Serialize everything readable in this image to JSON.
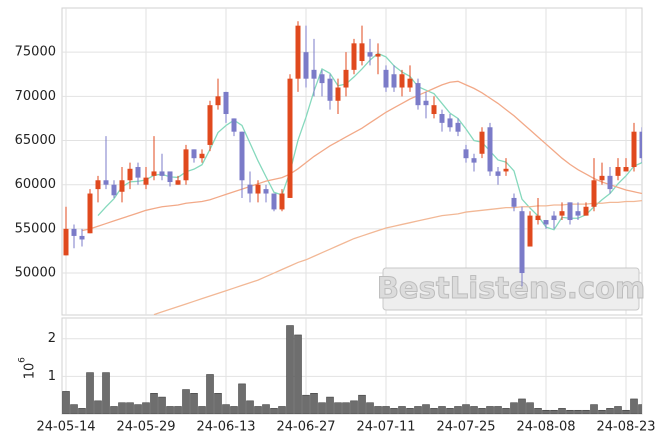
{
  "chart_data": [
    {
      "type": "candlestick",
      "open": [
        52000,
        55000,
        54200,
        54500,
        59500,
        60500,
        60000,
        59200,
        60500,
        62000,
        60000,
        61000,
        61500,
        61500,
        60000,
        60500,
        64000,
        63000,
        64500,
        69000,
        70500,
        67500,
        66000,
        60000,
        59000,
        59500,
        59000,
        57200,
        58500,
        72000,
        75000,
        73000,
        72500,
        72000,
        69500,
        71000,
        73000,
        74000,
        75000,
        74500,
        73000,
        72500,
        71000,
        71000,
        71500,
        69500,
        68000,
        68000,
        67500,
        67000,
        64000,
        63000,
        63500,
        66500,
        61500,
        61500,
        58500,
        57000,
        53000,
        56000,
        56000,
        56500,
        56500,
        58000,
        57000,
        56500,
        57500,
        60500,
        61000,
        61000,
        61500,
        62000,
        66000
      ],
      "high": [
        57500,
        55500,
        55000,
        59500,
        61000,
        65500,
        60500,
        62000,
        62500,
        62500,
        62000,
        65500,
        63500,
        61500,
        61000,
        64500,
        64000,
        64000,
        69500,
        72000,
        70500,
        67500,
        66000,
        61500,
        60500,
        60000,
        59000,
        59500,
        72500,
        78500,
        78000,
        76500,
        73000,
        72500,
        72000,
        75000,
        76500,
        78000,
        76500,
        76000,
        73500,
        73500,
        73000,
        73500,
        72000,
        70500,
        70000,
        68500,
        68000,
        67500,
        64500,
        63500,
        66500,
        67000,
        62000,
        63000,
        59000,
        57500,
        57000,
        58500,
        56000,
        57000,
        58000,
        58000,
        58000,
        58000,
        63000,
        62500,
        62000,
        63000,
        63000,
        67000,
        66500
      ],
      "low": [
        52000,
        52800,
        53000,
        54500,
        58000,
        59500,
        58500,
        58000,
        59500,
        60000,
        59500,
        60500,
        60500,
        59800,
        60000,
        60000,
        62500,
        62500,
        63800,
        68500,
        67000,
        65500,
        58500,
        58000,
        58000,
        58000,
        57000,
        57000,
        58500,
        70500,
        71000,
        70000,
        70000,
        68500,
        68000,
        70000,
        72500,
        73500,
        73500,
        72500,
        70500,
        70500,
        70000,
        70500,
        68500,
        67500,
        67500,
        66000,
        66000,
        65500,
        62500,
        61500,
        63000,
        61000,
        60000,
        61000,
        57000,
        48500,
        53000,
        55500,
        55000,
        55000,
        56000,
        55500,
        56000,
        56500,
        57000,
        60000,
        59000,
        60500,
        61500,
        61500,
        62500
      ],
      "close": [
        55000,
        54200,
        53800,
        59000,
        60500,
        60000,
        58800,
        60500,
        61800,
        60800,
        60800,
        61500,
        61000,
        60300,
        60500,
        64000,
        63000,
        63500,
        69000,
        70000,
        68000,
        66000,
        60500,
        59000,
        60000,
        59000,
        57200,
        59000,
        72000,
        78000,
        72000,
        72000,
        71500,
        69500,
        71000,
        73000,
        76000,
        76000,
        74500,
        74800,
        71000,
        71000,
        72500,
        72000,
        69000,
        69000,
        69000,
        67000,
        66500,
        66000,
        63000,
        62500,
        66000,
        61500,
        61000,
        61800,
        57500,
        50000,
        56500,
        56500,
        55500,
        56000,
        57000,
        56000,
        56500,
        57500,
        60500,
        61000,
        59500,
        62000,
        62000,
        66000,
        63000
      ],
      "up_color": "#e0491e",
      "down_color": "#7b7bc8",
      "series": [
        {
          "color": "#86d9bd",
          "values": [
            null,
            null,
            null,
            null,
            56500,
            57500,
            58420,
            59760,
            60320,
            60380,
            60540,
            61080,
            61180,
            60880,
            60820,
            61460,
            61760,
            62260,
            64000,
            65900,
            66700,
            67300,
            66700,
            64700,
            62700,
            60900,
            59140,
            58840,
            61440,
            65040,
            67640,
            70600,
            73100,
            72600,
            71200,
            71400,
            72200,
            73100,
            74100,
            74860,
            74460,
            73460,
            72760,
            72260,
            71100,
            70700,
            70300,
            69200,
            68100,
            67500,
            66300,
            65000,
            64800,
            63800,
            62800,
            62560,
            61560,
            58360,
            57360,
            56460,
            55200,
            54900,
            56300,
            56200,
            56200,
            56600,
            57500,
            58300,
            59000,
            60100,
            61000,
            62100,
            62500
          ]
        },
        {
          "color": "#f2a988",
          "values": [
            null,
            null,
            54800,
            55000,
            55300,
            55600,
            55900,
            56200,
            56500,
            56800,
            57100,
            57300,
            57500,
            57600,
            57700,
            57900,
            58000,
            58100,
            58300,
            58600,
            58900,
            59200,
            59500,
            59800,
            60100,
            60400,
            60600,
            60800,
            61200,
            61800,
            62500,
            63200,
            63800,
            64400,
            64900,
            65400,
            65900,
            66400,
            67000,
            67600,
            68200,
            68700,
            69200,
            69700,
            70100,
            70500,
            70900,
            71300,
            71600,
            71700,
            71300,
            70900,
            70400,
            69800,
            69200,
            68500,
            67800,
            67000,
            66200,
            65400,
            64600,
            63800,
            63000,
            62300,
            61700,
            61200,
            60700,
            60300,
            60000,
            59700,
            59400,
            59200,
            59000
          ]
        },
        {
          "color": "#f2b896",
          "values": [
            null,
            null,
            null,
            null,
            null,
            null,
            null,
            null,
            null,
            null,
            null,
            45300,
            45600,
            45900,
            46200,
            46500,
            46800,
            47100,
            47400,
            47700,
            48000,
            48300,
            48600,
            48900,
            49200,
            49600,
            50000,
            50400,
            50800,
            51200,
            51500,
            51900,
            52300,
            52700,
            53100,
            53500,
            53900,
            54200,
            54500,
            54800,
            55100,
            55300,
            55500,
            55700,
            55900,
            56100,
            56300,
            56500,
            56600,
            56700,
            56900,
            57000,
            57100,
            57200,
            57300,
            57400,
            57400,
            57500,
            57500,
            57600,
            57600,
            57700,
            57700,
            57800,
            57800,
            57800,
            57900,
            57900,
            58000,
            58000,
            58100,
            58100,
            58200
          ]
        }
      ],
      "ylim": [
        45250,
        80000
      ],
      "yticks": [
        50000,
        55000,
        60000,
        65000,
        70000,
        75000
      ],
      "grid": true,
      "annotation": "BestListens.com"
    },
    {
      "type": "bar",
      "categories": [
        "24-05-14",
        null,
        null,
        null,
        null,
        null,
        null,
        null,
        null,
        null,
        "24-05-29",
        null,
        null,
        null,
        null,
        null,
        null,
        null,
        null,
        null,
        "24-06-13",
        null,
        null,
        null,
        null,
        null,
        null,
        null,
        null,
        null,
        "24-06-27",
        null,
        null,
        null,
        null,
        null,
        null,
        null,
        null,
        null,
        "24-07-11",
        null,
        null,
        null,
        null,
        null,
        null,
        null,
        null,
        null,
        "24-07-25",
        null,
        null,
        null,
        null,
        null,
        null,
        null,
        null,
        null,
        "24-08-08",
        null,
        null,
        null,
        null,
        null,
        null,
        null,
        null,
        null,
        "24-08-23",
        null,
        null
      ],
      "values": [
        0.6,
        0.25,
        0.15,
        1.1,
        0.35,
        1.1,
        0.2,
        0.3,
        0.3,
        0.25,
        0.3,
        0.55,
        0.45,
        0.2,
        0.2,
        0.65,
        0.55,
        0.2,
        1.05,
        0.55,
        0.25,
        0.2,
        0.8,
        0.35,
        0.2,
        0.25,
        0.15,
        0.2,
        2.35,
        2.1,
        0.5,
        0.55,
        0.3,
        0.45,
        0.3,
        0.3,
        0.35,
        0.5,
        0.3,
        0.2,
        0.2,
        0.15,
        0.2,
        0.15,
        0.2,
        0.25,
        0.15,
        0.2,
        0.15,
        0.2,
        0.25,
        0.2,
        0.15,
        0.2,
        0.2,
        0.15,
        0.3,
        0.4,
        0.3,
        0.15,
        0.1,
        0.1,
        0.15,
        0.1,
        0.1,
        0.1,
        0.25,
        0.1,
        0.15,
        0.2,
        0.1,
        0.4,
        0.25
      ],
      "color": "#6e6e6e",
      "ylim": [
        0,
        2.55
      ],
      "yticks": [
        1,
        2
      ],
      "grid": true,
      "ylabel": "10",
      "ylabel_exponent": "6"
    }
  ]
}
